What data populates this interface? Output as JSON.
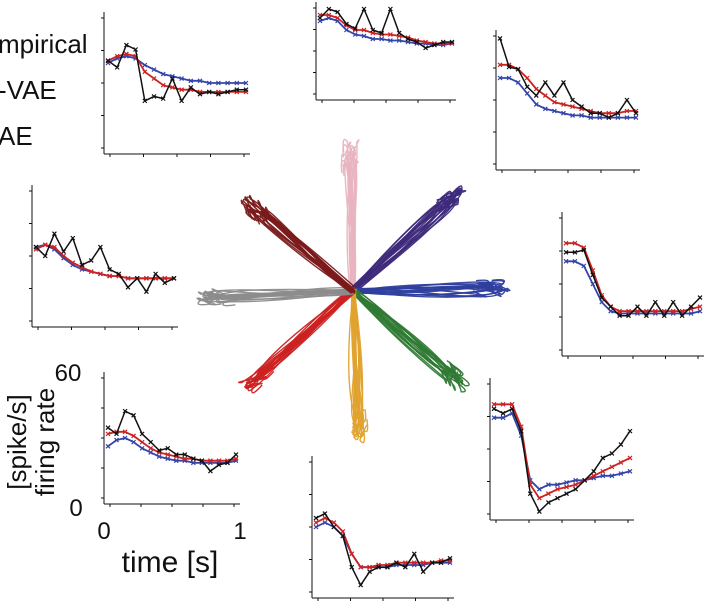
{
  "colors": {
    "empirical": "#111111",
    "model_a": "#cc2222",
    "model_b": "#3344aa",
    "reaches": [
      "#e8b4c0",
      "#3d2a7a",
      "#2e3f9e",
      "#2f7a34",
      "#e0a22e",
      "#cc2222",
      "#8c8c8c",
      "#7a1a1a"
    ]
  },
  "legend": [
    {
      "label": "mpirical",
      "color": "#111111"
    },
    {
      "label": "-VAE",
      "color": "#cc2222"
    },
    {
      "label": "AE",
      "color": "#3344aa"
    }
  ],
  "axes": {
    "y_tick_top": "60",
    "y_tick_bottom": "0",
    "x_tick_left": "0",
    "x_tick_right": "1",
    "ylabel_line1": "[spike/s]",
    "ylabel_line2": "firing rate",
    "xlabel": "time [s]"
  },
  "chart_data": {
    "type": "line",
    "xlabel": "time [s]",
    "ylabel": "firing rate [spike/s]",
    "xlim": [
      0,
      1
    ],
    "ylim": [
      0,
      60
    ],
    "x": [
      0,
      0.0667,
      0.1333,
      0.2,
      0.2667,
      0.3333,
      0.4,
      0.4667,
      0.5333,
      0.6,
      0.6667,
      0.7333,
      0.8,
      0.8667,
      0.9333,
      1.0
    ],
    "panels": [
      {
        "name": "top-left",
        "empirical": [
          40,
          37,
          47,
          45,
          22,
          24,
          23,
          32,
          22,
          28,
          25,
          26,
          25,
          26,
          27,
          27
        ],
        "model_a": [
          40,
          42,
          43,
          42,
          35,
          32,
          29,
          28,
          27,
          27,
          26,
          26,
          26,
          26,
          26,
          26
        ],
        "model_b": [
          39,
          41,
          42,
          41,
          38,
          36,
          34,
          33,
          32,
          31,
          31,
          30,
          30,
          30,
          30,
          30
        ]
      },
      {
        "name": "top-center",
        "empirical": [
          52,
          58,
          56,
          48,
          45,
          58,
          44,
          42,
          58,
          42,
          38,
          36,
          32,
          34,
          36,
          36
        ],
        "model_a": [
          54,
          54,
          52,
          47,
          44,
          44,
          42,
          41,
          41,
          40,
          39,
          37,
          36,
          35,
          35,
          35
        ],
        "model_b": [
          50,
          52,
          50,
          44,
          41,
          40,
          38,
          38,
          37,
          37,
          36,
          35,
          35,
          34,
          34,
          35
        ]
      },
      {
        "name": "top-right",
        "empirical": [
          58,
          45,
          44,
          36,
          32,
          38,
          32,
          38,
          30,
          27,
          24,
          24,
          22,
          24,
          30,
          24
        ],
        "model_a": [
          46,
          46,
          44,
          40,
          35,
          32,
          29,
          28,
          27,
          26,
          25,
          24,
          24,
          24,
          25,
          25
        ],
        "model_b": [
          40,
          40,
          38,
          33,
          28,
          26,
          25,
          24,
          23,
          23,
          22,
          22,
          22,
          22,
          22,
          22
        ]
      },
      {
        "name": "middle-left",
        "empirical": [
          34,
          30,
          40,
          32,
          38,
          26,
          28,
          34,
          24,
          22,
          16,
          20,
          14,
          22,
          18,
          20
        ],
        "model_a": [
          33,
          35,
          34,
          30,
          27,
          25,
          23,
          22,
          21,
          21,
          20,
          20,
          20,
          20,
          20,
          20
        ],
        "model_b": [
          34,
          35,
          33,
          29,
          26,
          24,
          23,
          22,
          21,
          21,
          20,
          20,
          20,
          20,
          20,
          20
        ]
      },
      {
        "name": "middle-right",
        "empirical": [
          44,
          44,
          45,
          34,
          24,
          20,
          16,
          16,
          20,
          16,
          22,
          16,
          22,
          16,
          20,
          24
        ],
        "model_a": [
          48,
          48,
          46,
          36,
          25,
          20,
          18,
          18,
          18,
          18,
          18,
          18,
          18,
          18,
          19,
          20
        ],
        "model_b": [
          40,
          40,
          38,
          30,
          22,
          18,
          17,
          17,
          17,
          17,
          17,
          17,
          17,
          17,
          17,
          18
        ]
      },
      {
        "name": "bottom-left",
        "empirical": [
          35,
          32,
          43,
          41,
          32,
          28,
          24,
          25,
          22,
          22,
          20,
          19,
          14,
          17,
          18,
          22
        ],
        "model_a": [
          32,
          33,
          33,
          31,
          28,
          25,
          23,
          22,
          21,
          20,
          20,
          19,
          19,
          19,
          19,
          20
        ],
        "model_b": [
          26,
          29,
          30,
          28,
          25,
          23,
          21,
          20,
          19,
          19,
          18,
          18,
          18,
          18,
          18,
          19
        ]
      },
      {
        "name": "bottom-center",
        "empirical": [
          34,
          36,
          30,
          26,
          12,
          4,
          10,
          12,
          12,
          14,
          12,
          18,
          10,
          14,
          14,
          16
        ],
        "model_a": [
          32,
          34,
          32,
          28,
          18,
          12,
          12,
          13,
          13,
          14,
          14,
          14,
          14,
          14,
          15,
          15
        ],
        "model_b": [
          30,
          32,
          30,
          26,
          18,
          12,
          12,
          12,
          12,
          13,
          13,
          13,
          13,
          14,
          14,
          14
        ]
      },
      {
        "name": "bottom-right",
        "empirical": [
          48,
          46,
          48,
          38,
          10,
          2,
          6,
          8,
          10,
          12,
          16,
          20,
          26,
          28,
          32,
          38
        ],
        "model_a": [
          50,
          50,
          50,
          40,
          14,
          8,
          10,
          12,
          13,
          14,
          16,
          18,
          20,
          22,
          24,
          26
        ],
        "model_b": [
          44,
          44,
          46,
          36,
          16,
          12,
          14,
          14,
          15,
          16,
          16,
          17,
          18,
          18,
          19,
          20
        ]
      }
    ]
  }
}
